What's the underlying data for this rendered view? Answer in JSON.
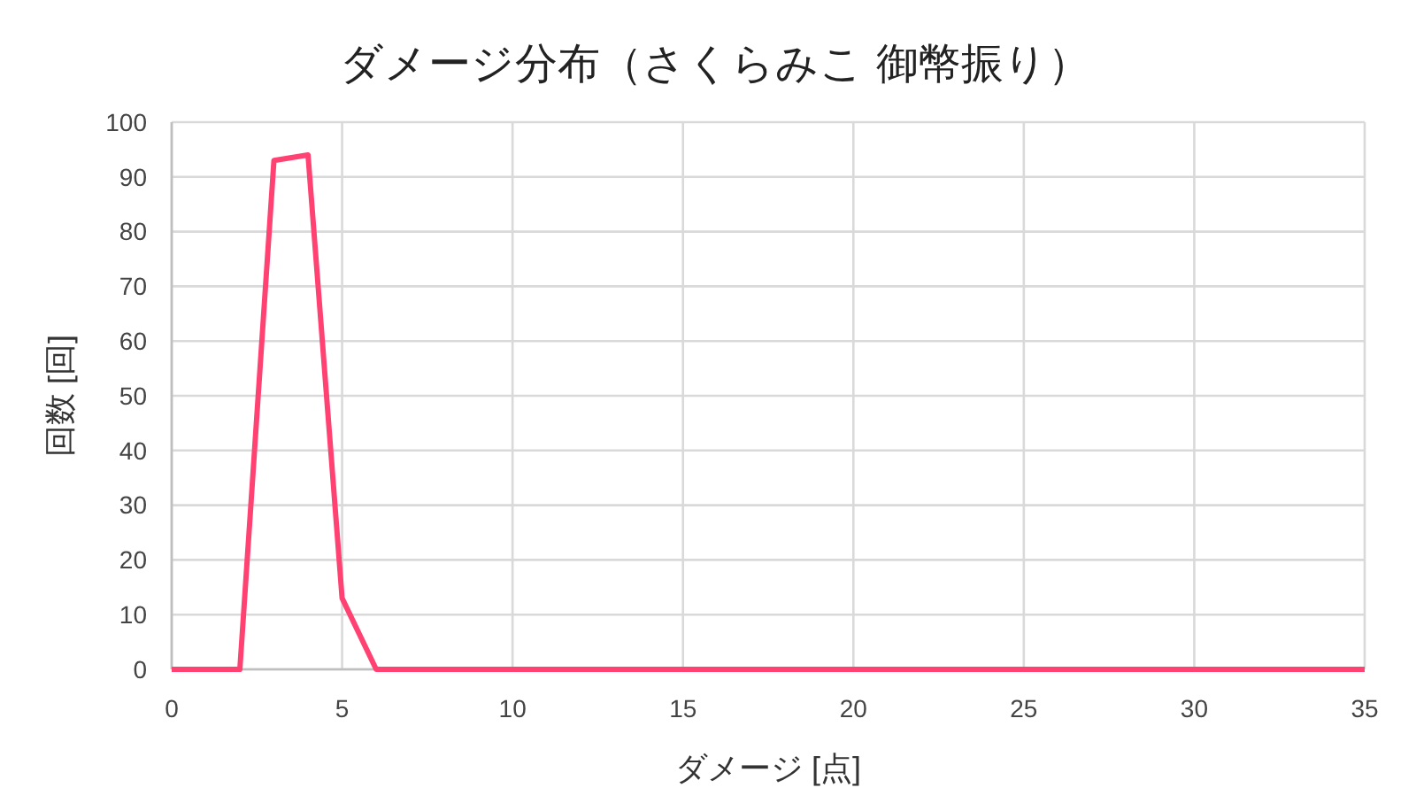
{
  "chart_data": {
    "type": "line",
    "title": "ダメージ分布（さくらみこ 御幣振り）",
    "xlabel": "ダメージ [点]",
    "ylabel": "回数 [回]",
    "x": [
      0,
      1,
      2,
      3,
      4,
      5,
      6,
      7,
      8,
      9,
      10,
      11,
      12,
      13,
      14,
      15,
      16,
      17,
      18,
      19,
      20,
      21,
      22,
      23,
      24,
      25,
      26,
      27,
      28,
      29,
      30,
      31,
      32,
      33,
      34,
      35
    ],
    "series": [
      {
        "color": "#ff4271",
        "values": [
          0,
          0,
          0,
          93,
          94,
          13,
          0,
          0,
          0,
          0,
          0,
          0,
          0,
          0,
          0,
          0,
          0,
          0,
          0,
          0,
          0,
          0,
          0,
          0,
          0,
          0,
          0,
          0,
          0,
          0,
          0,
          0,
          0,
          0,
          0,
          0
        ]
      }
    ],
    "xlim": [
      0,
      35
    ],
    "xticks": [
      0,
      5,
      10,
      15,
      20,
      25,
      30,
      35
    ],
    "ylim": [
      0,
      100
    ],
    "yticks": [
      0,
      10,
      20,
      30,
      40,
      50,
      60,
      70,
      80,
      90,
      100
    ],
    "grid": true,
    "marker": "none",
    "line_style": "solid"
  }
}
